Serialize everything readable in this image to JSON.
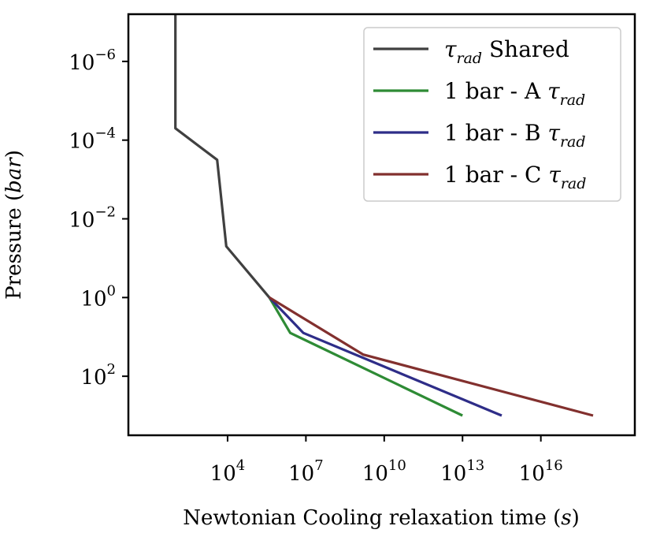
{
  "chart_data": {
    "type": "line",
    "xscale": "log",
    "yscale": "log",
    "y_inverted": true,
    "xlabel": {
      "text": "Newtonian Cooling relaxation time ",
      "unit": "s"
    },
    "ylabel": {
      "text": "Pressure ",
      "unit": "bar"
    },
    "xlim_log10": [
      0.2,
      19.6
    ],
    "ylim_log10": [
      -7.2,
      3.5
    ],
    "x_ticks": [
      {
        "base": "10",
        "exp": "4",
        "log": 4
      },
      {
        "base": "10",
        "exp": "7",
        "log": 7
      },
      {
        "base": "10",
        "exp": "10",
        "log": 10
      },
      {
        "base": "10",
        "exp": "13",
        "log": 13
      },
      {
        "base": "10",
        "exp": "16",
        "log": 16
      }
    ],
    "y_ticks": [
      {
        "base": "10",
        "exp": "−6",
        "log": -6
      },
      {
        "base": "10",
        "exp": "−4",
        "log": -4
      },
      {
        "base": "10",
        "exp": "−2",
        "log": -2
      },
      {
        "base": "10",
        "exp": "0",
        "log": 0
      },
      {
        "base": "10",
        "exp": "2",
        "log": 2
      }
    ],
    "series": [
      {
        "name": "Shared",
        "label_main": "τ",
        "label_sub": "rad",
        "label_suffix": " Shared",
        "color": "#404040",
        "points_log10": [
          [
            2.0,
            -7.2
          ],
          [
            2.0,
            -4.3
          ],
          [
            3.6,
            -3.5
          ],
          [
            3.95,
            -1.3
          ],
          [
            5.6,
            0.0
          ]
        ]
      },
      {
        "name": "1 bar - A",
        "label_main": "1 bar - A τ",
        "label_sub": "rad",
        "label_suffix": "",
        "color": "#2e8b35",
        "points_log10": [
          [
            5.6,
            0.0
          ],
          [
            6.4,
            0.9
          ],
          [
            13.0,
            3.0
          ]
        ]
      },
      {
        "name": "1 bar - B",
        "label_main": "1 bar - B τ",
        "label_sub": "rad",
        "label_suffix": "",
        "color": "#2e2d88",
        "points_log10": [
          [
            5.6,
            0.0
          ],
          [
            6.9,
            0.9
          ],
          [
            14.5,
            3.0
          ]
        ]
      },
      {
        "name": "1 bar - C",
        "label_main": "1 bar - C τ",
        "label_sub": "rad",
        "label_suffix": "",
        "color": "#82302e",
        "points_log10": [
          [
            5.6,
            0.0
          ],
          [
            9.2,
            1.45
          ],
          [
            18.0,
            3.0
          ]
        ]
      }
    ],
    "legend": "top-right"
  }
}
